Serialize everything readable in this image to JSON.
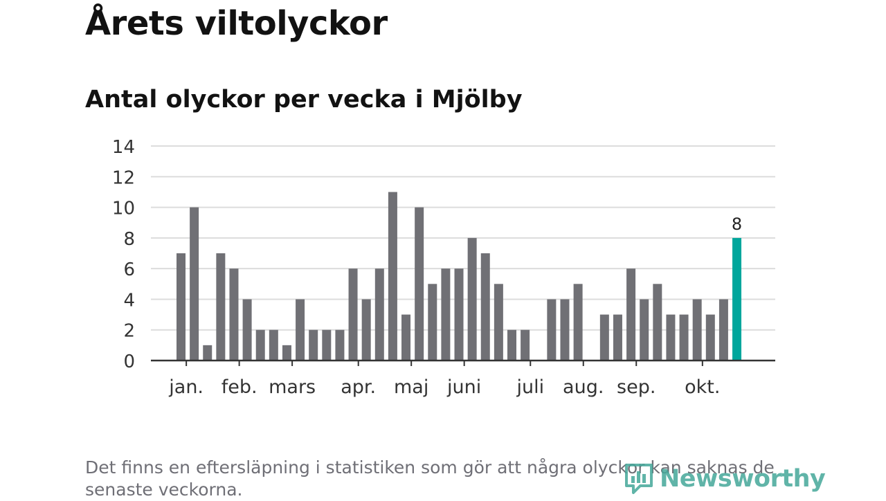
{
  "title": "Årets viltolyckor",
  "chart_data": {
    "type": "bar",
    "title": "Antal olyckor per vecka i Mjölby",
    "xlabel": "",
    "ylabel": "",
    "ylim": [
      0,
      14
    ],
    "yticks": [
      0,
      2,
      4,
      6,
      8,
      10,
      12,
      14
    ],
    "grid": true,
    "values": [
      7,
      10,
      1,
      7,
      6,
      4,
      2,
      2,
      1,
      4,
      2,
      2,
      2,
      6,
      4,
      6,
      11,
      3,
      10,
      5,
      6,
      6,
      8,
      7,
      5,
      2,
      2,
      0,
      4,
      4,
      5,
      0,
      3,
      3,
      6,
      4,
      5,
      3,
      3,
      4,
      3,
      4,
      8
    ],
    "month_labels": [
      {
        "label": "jan.",
        "week": 1
      },
      {
        "label": "feb.",
        "week": 5
      },
      {
        "label": "mars",
        "week": 9
      },
      {
        "label": "apr.",
        "week": 14
      },
      {
        "label": "maj",
        "week": 18
      },
      {
        "label": "juni",
        "week": 22
      },
      {
        "label": "juli",
        "week": 27
      },
      {
        "label": "aug.",
        "week": 31
      },
      {
        "label": "sep.",
        "week": 35
      },
      {
        "label": "okt.",
        "week": 40
      }
    ],
    "highlight_index": 42,
    "highlight_label": "8",
    "bar_color": "#707075",
    "highlight_color": "#00a69c",
    "grid_color": "#dcdcdc",
    "axis_color": "#333333"
  },
  "footnote": "Det finns en eftersläpning i statistiken som gör att några olyckor kan saknas de senaste veckorna.",
  "logo": {
    "text": "Newsworthy",
    "color": "#45a79a"
  }
}
